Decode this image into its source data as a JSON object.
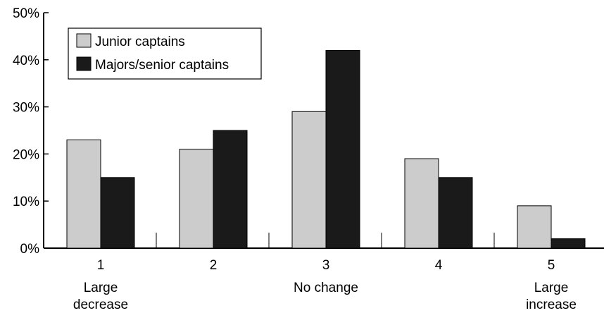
{
  "colors": {
    "series_1": "#cccccc",
    "series_2": "#1a1a1a",
    "axis": "#000000"
  },
  "chart_data": {
    "type": "bar",
    "title": "",
    "xlabel": "",
    "ylabel": "",
    "ylim": [
      0,
      50
    ],
    "y_ticks": [
      0,
      10,
      20,
      30,
      40,
      50
    ],
    "y_tick_labels": [
      "0%",
      "10%",
      "20%",
      "30%",
      "40%",
      "50%"
    ],
    "categories": [
      "1",
      "2",
      "3",
      "4",
      "5"
    ],
    "category_sublabels": [
      [
        "Large",
        "decrease"
      ],
      [],
      [
        "No change"
      ],
      [],
      [
        "Large",
        "increase"
      ]
    ],
    "series": [
      {
        "name": "Junior captains",
        "values": [
          23,
          21,
          29,
          19,
          9
        ]
      },
      {
        "name": "Majors/senior captains",
        "values": [
          15,
          25,
          42,
          15,
          2
        ]
      }
    ],
    "legend": {
      "position": "top-left",
      "entries": [
        "Junior captains",
        "Majors/senior captains"
      ]
    },
    "grid": false
  }
}
